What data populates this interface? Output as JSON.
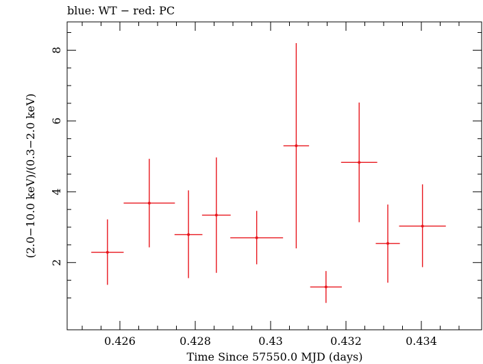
{
  "chart_data": {
    "type": "scatter",
    "title": "blue: WT − red: PC",
    "xlabel": "Time Since 57550.0 MJD (days)",
    "ylabel": "(2.0−10.0 keV)/(0.3−2.0 keV)",
    "xlim": [
      0.4246,
      0.4356
    ],
    "ylim": [
      0.1,
      8.8
    ],
    "grid": false,
    "x_ticks": [
      0.426,
      0.428,
      0.43,
      0.432,
      0.434
    ],
    "x_tick_labels": [
      "0.426",
      "0.428",
      "0.43",
      "0.432",
      "0.434"
    ],
    "y_ticks": [
      2,
      4,
      6,
      8
    ],
    "y_tick_labels": [
      "2",
      "4",
      "6",
      "8"
    ],
    "colors": {
      "series": "#e8141b",
      "axes": "#000000"
    },
    "series": [
      {
        "color": "#e8141b",
        "points": [
          {
            "x": 0.42567,
            "x_err": 0.00043,
            "y": 2.29,
            "y_low": 1.37,
            "y_high": 3.22
          },
          {
            "x": 0.42678,
            "x_err": 0.00068,
            "y": 3.68,
            "y_low": 2.43,
            "y_high": 4.93
          },
          {
            "x": 0.42782,
            "x_err": 0.00037,
            "y": 2.79,
            "y_low": 1.56,
            "y_high": 4.04
          },
          {
            "x": 0.42856,
            "x_err": 0.00038,
            "y": 3.34,
            "y_low": 1.71,
            "y_high": 4.97
          },
          {
            "x": 0.42963,
            "x_err": 0.0007,
            "y": 2.7,
            "y_low": 1.95,
            "y_high": 3.46
          },
          {
            "x": 0.43068,
            "x_err": 0.00034,
            "y": 5.3,
            "y_low": 2.4,
            "y_high": 8.2
          },
          {
            "x": 0.43147,
            "x_err": 0.00042,
            "y": 1.31,
            "y_low": 0.86,
            "y_high": 1.76
          },
          {
            "x": 0.43235,
            "x_err": 0.00048,
            "y": 4.83,
            "y_low": 3.14,
            "y_high": 6.52
          },
          {
            "x": 0.43311,
            "x_err": 0.00032,
            "y": 2.54,
            "y_low": 1.43,
            "y_high": 3.64
          },
          {
            "x": 0.43403,
            "x_err": 0.00062,
            "y": 3.03,
            "y_low": 1.87,
            "y_high": 4.21
          }
        ]
      }
    ]
  }
}
